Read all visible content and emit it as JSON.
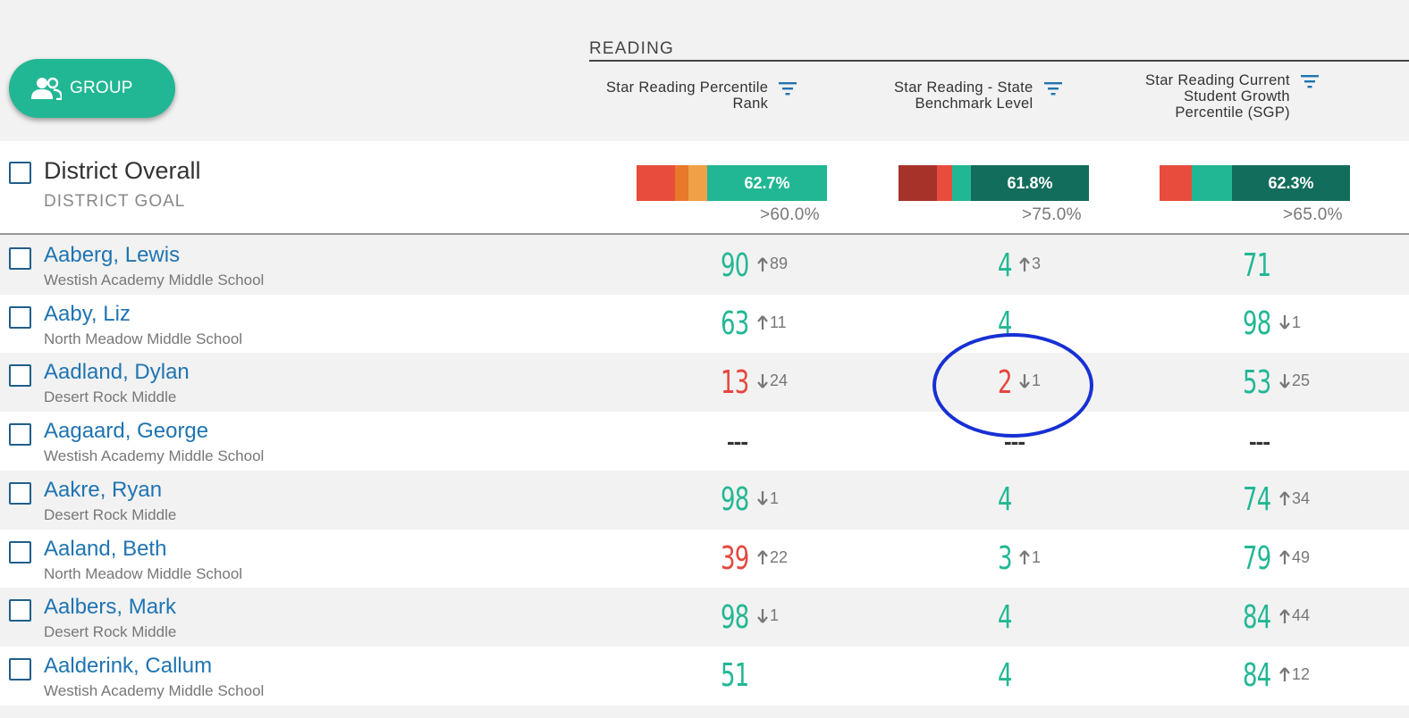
{
  "toolbar": {
    "group_label": "GROUP"
  },
  "section": {
    "title": "READING"
  },
  "columns": [
    {
      "label_lines": [
        "Star Reading Percentile",
        "Rank"
      ]
    },
    {
      "label_lines": [
        "Star Reading - State",
        "Benchmark Level"
      ]
    },
    {
      "label_lines": [
        "Star Reading Current",
        "Student Growth",
        "Percentile (SGP)"
      ]
    }
  ],
  "district": {
    "title": "District Overall",
    "subtitle": "DISTRICT GOAL",
    "bars": [
      {
        "segments": [
          {
            "color": "#e84c3d",
            "share": 0.2
          },
          {
            "color": "#e8782a",
            "share": 0.07
          },
          {
            "color": "#f0a046",
            "share": 0.1
          },
          {
            "color": "#22b794",
            "share": 0.63
          }
        ],
        "label": "62.7%",
        "goal": ">60.0%"
      },
      {
        "segments": [
          {
            "color": "#a7322a",
            "share": 0.2
          },
          {
            "color": "#e84c3d",
            "share": 0.08
          },
          {
            "color": "#22b794",
            "share": 0.1
          },
          {
            "color": "#136d5c",
            "share": 0.62
          }
        ],
        "label": "61.8%",
        "goal": ">75.0%"
      },
      {
        "segments": [
          {
            "color": "#e84c3d",
            "share": 0.17
          },
          {
            "color": "#22b794",
            "share": 0.21
          },
          {
            "color": "#136d5c",
            "share": 0.62
          }
        ],
        "label": "62.3%",
        "goal": ">65.0%"
      }
    ]
  },
  "students": [
    {
      "name": "Aaberg, Lewis",
      "school": "Westish Academy Middle School",
      "cells": [
        {
          "value": "90",
          "color": "green",
          "dir": "up",
          "delta": "89"
        },
        {
          "value": "4",
          "color": "green",
          "dir": "up",
          "delta": "3"
        },
        {
          "value": "71",
          "color": "green",
          "dir": "",
          "delta": ""
        }
      ]
    },
    {
      "name": "Aaby, Liz",
      "school": "North Meadow Middle School",
      "cells": [
        {
          "value": "63",
          "color": "green",
          "dir": "up",
          "delta": "11"
        },
        {
          "value": "4",
          "color": "green",
          "dir": "",
          "delta": ""
        },
        {
          "value": "98",
          "color": "green",
          "dir": "down",
          "delta": "1"
        }
      ]
    },
    {
      "name": "Aadland, Dylan",
      "school": "Desert Rock Middle",
      "cells": [
        {
          "value": "13",
          "color": "red",
          "dir": "down",
          "delta": "24"
        },
        {
          "value": "2",
          "color": "red",
          "dir": "down",
          "delta": "1"
        },
        {
          "value": "53",
          "color": "green",
          "dir": "down",
          "delta": "25"
        }
      ]
    },
    {
      "name": "Aagaard, George",
      "school": "Westish Academy Middle School",
      "cells": [
        {
          "value": "---",
          "color": "dash",
          "dir": "",
          "delta": ""
        },
        {
          "value": "---",
          "color": "dash",
          "dir": "",
          "delta": ""
        },
        {
          "value": "---",
          "color": "dash",
          "dir": "",
          "delta": ""
        }
      ]
    },
    {
      "name": "Aakre, Ryan",
      "school": "Desert Rock Middle",
      "cells": [
        {
          "value": "98",
          "color": "green",
          "dir": "down",
          "delta": "1"
        },
        {
          "value": "4",
          "color": "green",
          "dir": "",
          "delta": ""
        },
        {
          "value": "74",
          "color": "green",
          "dir": "up",
          "delta": "34"
        }
      ]
    },
    {
      "name": "Aaland, Beth",
      "school": "North Meadow Middle School",
      "cells": [
        {
          "value": "39",
          "color": "red",
          "dir": "up",
          "delta": "22"
        },
        {
          "value": "3",
          "color": "green",
          "dir": "up",
          "delta": "1"
        },
        {
          "value": "79",
          "color": "green",
          "dir": "up",
          "delta": "49"
        }
      ]
    },
    {
      "name": "Aalbers, Mark",
      "school": "Desert Rock Middle",
      "cells": [
        {
          "value": "98",
          "color": "green",
          "dir": "down",
          "delta": "1"
        },
        {
          "value": "4",
          "color": "green",
          "dir": "",
          "delta": ""
        },
        {
          "value": "84",
          "color": "green",
          "dir": "up",
          "delta": "44"
        }
      ]
    },
    {
      "name": "Aalderink, Callum",
      "school": "Westish Academy Middle School",
      "cells": [
        {
          "value": "51",
          "color": "green",
          "dir": "",
          "delta": ""
        },
        {
          "value": "4",
          "color": "green",
          "dir": "",
          "delta": ""
        },
        {
          "value": "84",
          "color": "green",
          "dir": "up",
          "delta": "12"
        }
      ]
    }
  ]
}
